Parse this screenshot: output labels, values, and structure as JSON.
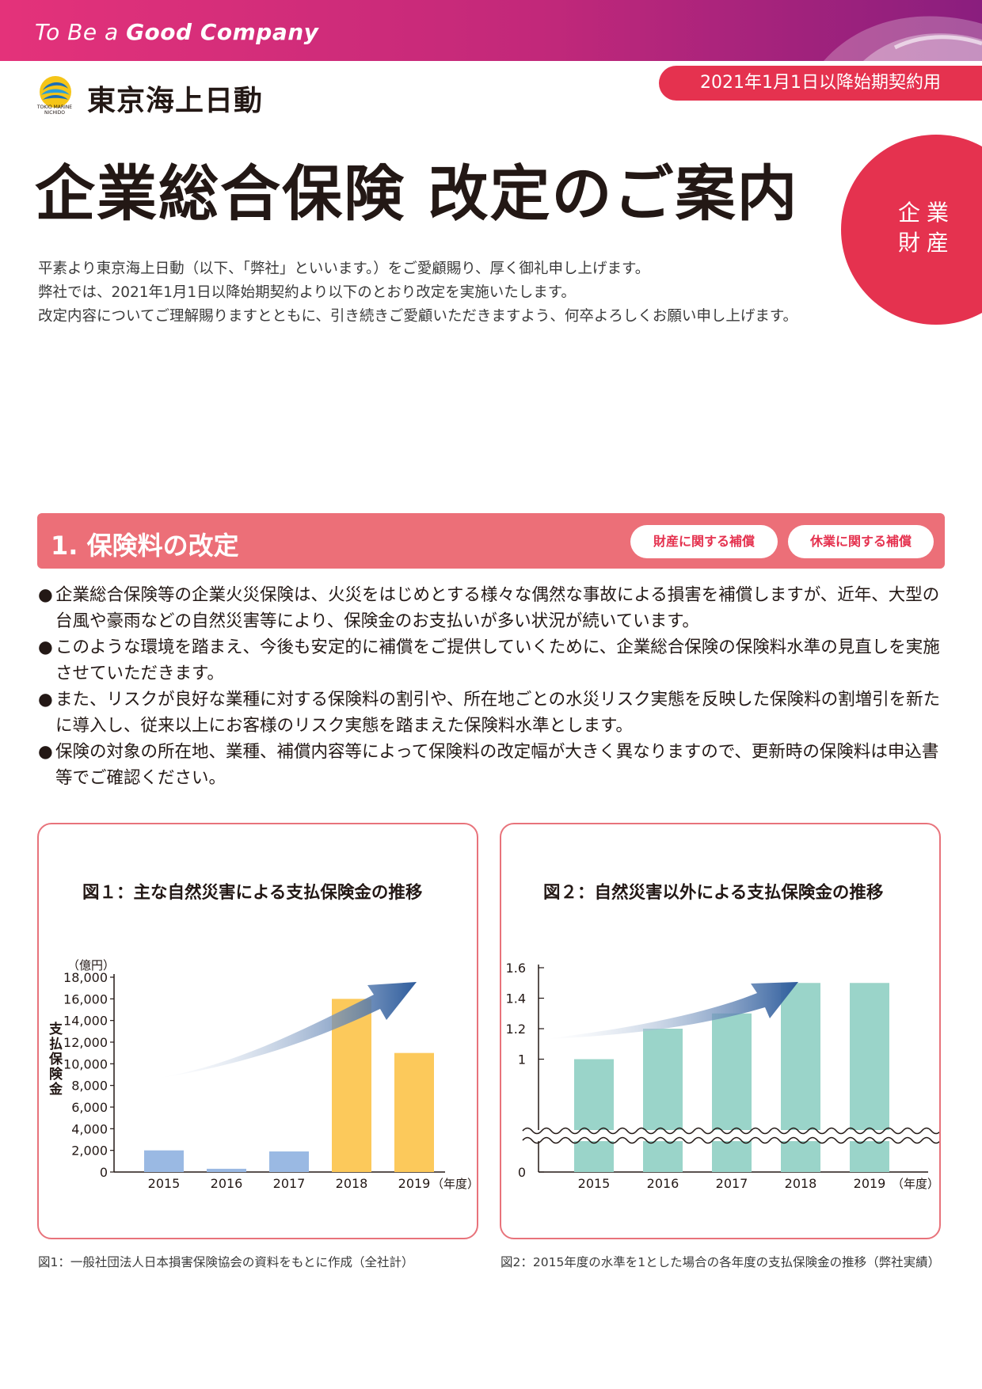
{
  "header": {
    "tagline_prefix": "To Be a ",
    "tagline_bold": "Good Company",
    "date_band": "2021年1月1日以降始期契約用",
    "company_name": "東京海上日動",
    "logo_text_1": "TOKIO MARINE",
    "logo_text_2": "NICHIDO",
    "logo_icon": "tokio-marine-logo-icon"
  },
  "title": "企業総合保険 改定のご案内",
  "category_badge": {
    "line1": "企業",
    "line2": "財産"
  },
  "intro": [
    "平素より東京海上日動（以下、「弊社」といいます。）をご愛顧賜り、厚く御礼申し上げます。",
    "弊社では、2021年1月1日以降始期契約より以下のとおり改定を実施いたします。",
    "改定内容についてご理解賜りますとともに、引き続きご愛顧いただきますよう、何卒よろしくお願い申し上げます。"
  ],
  "section1": {
    "title": "1. 保険料の改定",
    "tag1": "財産に関する補償",
    "tag2": "休業に関する補償",
    "bullet_symbol": "●",
    "bullets": [
      "企業総合保険等の企業火災保険は、火災をはじめとする様々な偶然な事故による損害を補償しますが、近年、大型の台風や豪雨などの自然災害等により、保険金のお支払いが多い状況が続いています。",
      "このような環境を踏まえ、今後も安定的に補償をご提供していくために、企業総合保険の保険料水準の見直しを実施させていただきます。",
      "また、リスクが良好な業種に対する保険料の割引や、所在地ごとの水災リスク実態を反映した保険料の割増引を新たに導入し、従来以上にお客様のリスク実態を踏まえた保険料水準とします。",
      "保険の対象の所在地、業種、補償内容等によって保険料の改定幅が大きく異なりますので、更新時の保険料は申込書等でご確認ください。"
    ]
  },
  "captions": {
    "fig1": "図1：一般社団法人日本損害保険協会の資料をもとに作成（全社計）",
    "fig2": "図2：2015年度の水準を1とした場合の各年度の支払保険金の推移（弊社実績）"
  },
  "colors": {
    "accent_red": "#e5324f",
    "section_bar": "#ec6f78",
    "bar_blue": "#9ab9e3",
    "bar_yellow": "#fcc95b",
    "bar_teal": "#9ad4c9",
    "arrow_blue": "#2e5c9c"
  },
  "chart_data": [
    {
      "type": "bar",
      "title": "図１：主な自然災害による支払保険金の推移",
      "unit_label": "（億円）",
      "ylabel": "支払保険金",
      "xlabel": "（年度）",
      "categories": [
        "2015",
        "2016",
        "2017",
        "2018",
        "2019"
      ],
      "values": [
        2000,
        300,
        1900,
        16000,
        11000
      ],
      "bar_colors": [
        "#9ab9e3",
        "#9ab9e3",
        "#9ab9e3",
        "#fcc95b",
        "#fcc95b"
      ],
      "ylim": [
        0,
        18000
      ],
      "yticks": [
        "0",
        "2,000",
        "4,000",
        "6,000",
        "8,000",
        "10,000",
        "12,000",
        "14,000",
        "16,000",
        "18,000"
      ],
      "trend_arrow": true,
      "grid": false
    },
    {
      "type": "bar",
      "title": "図２：自然災害以外による支払保険金の推移",
      "xlabel": "（年度）",
      "categories": [
        "2015",
        "2016",
        "2017",
        "2018",
        "2019"
      ],
      "values": [
        1.0,
        1.2,
        1.3,
        1.5,
        1.5
      ],
      "bar_color": "#9ad4c9",
      "ylim": [
        0,
        1.6
      ],
      "axis_break": [
        0,
        0.8
      ],
      "yticks": [
        "0",
        "1",
        "1.2",
        "1.4",
        "1.6"
      ],
      "trend_arrow": true,
      "grid": false
    }
  ]
}
